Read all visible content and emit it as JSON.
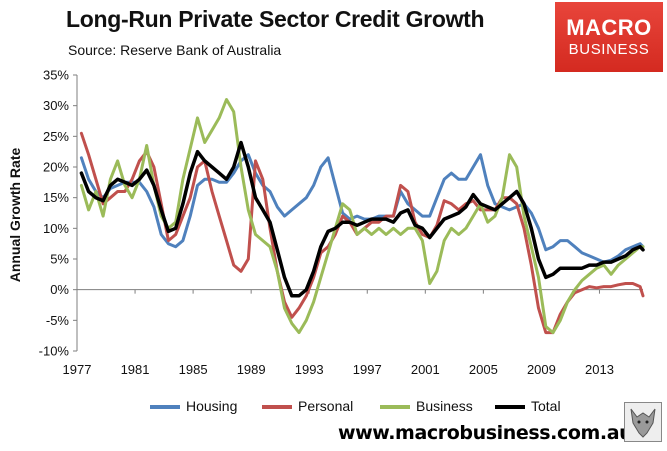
{
  "header": {
    "title": "Long-Run Private Sector Credit Growth",
    "source": "Source: Reserve Bank of Australia"
  },
  "brand": {
    "line1": "MACRO",
    "line2": "BUSINESS",
    "url": "www.macrobusiness.com.au",
    "color": "#d9322a"
  },
  "chart_data": {
    "type": "line",
    "title": "Long-Run Private Sector Credit Growth",
    "xlabel": "",
    "ylabel": "Annual Growth Rate",
    "xlim": [
      1977,
      2016
    ],
    "ylim": [
      -10,
      35
    ],
    "x_ticks": [
      "1977",
      "1981",
      "1985",
      "1989",
      "1993",
      "1997",
      "2001",
      "2005",
      "2009",
      "2013"
    ],
    "y_ticks": [
      "-10%",
      "-5%",
      "0%",
      "5%",
      "10%",
      "15%",
      "20%",
      "25%",
      "30%",
      "35%"
    ],
    "grid": false,
    "legend_position": "bottom",
    "series": [
      {
        "name": "Housing",
        "color": "#4f81bd",
        "width": 3,
        "x": [
          1977.3,
          1977.8,
          1978.3,
          1978.8,
          1979.3,
          1979.8,
          1980.3,
          1980.8,
          1981.3,
          1981.8,
          1982.3,
          1982.8,
          1983.3,
          1983.8,
          1984.3,
          1984.8,
          1985.3,
          1985.8,
          1986.3,
          1986.8,
          1987.3,
          1987.8,
          1988.3,
          1988.8,
          1989.3,
          1989.8,
          1990.3,
          1990.8,
          1991.3,
          1991.8,
          1992.3,
          1992.8,
          1993.3,
          1993.8,
          1994.3,
          1994.8,
          1995.3,
          1995.8,
          1996.3,
          1996.8,
          1997.3,
          1997.8,
          1998.3,
          1998.8,
          1999.3,
          1999.8,
          2000.3,
          2000.8,
          2001.3,
          2001.8,
          2002.3,
          2002.8,
          2003.3,
          2003.8,
          2004.3,
          2004.8,
          2005.3,
          2005.8,
          2006.3,
          2006.8,
          2007.3,
          2007.8,
          2008.3,
          2008.8,
          2009.3,
          2009.8,
          2010.3,
          2010.8,
          2011.3,
          2011.8,
          2012.3,
          2012.8,
          2013.3,
          2013.8,
          2014.3,
          2014.8,
          2015.3,
          2015.8,
          2016.0
        ],
        "values": [
          21.5,
          18,
          16,
          15,
          16.5,
          17,
          17.5,
          17.5,
          17.5,
          16,
          13.5,
          9,
          7.5,
          7,
          8,
          12,
          17,
          18,
          18,
          17.5,
          17.5,
          19,
          21,
          22,
          19,
          17,
          16,
          13.5,
          12,
          13,
          14,
          15,
          17,
          20,
          21.5,
          17,
          12.5,
          11.5,
          12,
          11.5,
          11.5,
          12,
          12,
          12,
          16,
          14,
          13,
          12,
          12,
          15,
          18,
          19,
          18,
          18,
          20,
          22,
          17,
          14,
          13.5,
          13,
          13.5,
          14,
          12.5,
          10,
          6.5,
          7,
          8,
          8,
          7,
          6,
          5.5,
          5,
          4.5,
          4.8,
          5.5,
          6.5,
          7,
          7.5,
          7
        ]
      },
      {
        "name": "Personal",
        "color": "#c0504d",
        "width": 3,
        "x": [
          1977.3,
          1977.8,
          1978.3,
          1978.8,
          1979.3,
          1979.8,
          1980.3,
          1980.8,
          1981.3,
          1981.8,
          1982.3,
          1982.8,
          1983.3,
          1983.8,
          1984.3,
          1984.8,
          1985.3,
          1985.8,
          1986.3,
          1986.8,
          1987.3,
          1987.8,
          1988.3,
          1988.8,
          1989.3,
          1989.8,
          1990.3,
          1990.8,
          1991.3,
          1991.8,
          1992.3,
          1992.8,
          1993.3,
          1993.8,
          1994.3,
          1994.8,
          1995.3,
          1995.8,
          1996.3,
          1996.8,
          1997.3,
          1997.8,
          1998.3,
          1998.8,
          1999.3,
          1999.8,
          2000.3,
          2000.8,
          2001.3,
          2001.8,
          2002.3,
          2002.8,
          2003.3,
          2003.8,
          2004.3,
          2004.8,
          2005.3,
          2005.8,
          2006.3,
          2006.8,
          2007.3,
          2007.8,
          2008.3,
          2008.8,
          2009.3,
          2009.8,
          2010.3,
          2010.8,
          2011.3,
          2011.8,
          2012.3,
          2012.8,
          2013.3,
          2013.8,
          2014.3,
          2014.8,
          2015.3,
          2015.8,
          2016.0
        ],
        "values": [
          25.5,
          22,
          18,
          14,
          15,
          16,
          16,
          18,
          21,
          22.5,
          20,
          14,
          8,
          9,
          12,
          15,
          20,
          21,
          16,
          12,
          8,
          4,
          3,
          5,
          21,
          18,
          10,
          3,
          -2,
          -4.5,
          -3,
          -1,
          2,
          6,
          7,
          9,
          12,
          11,
          9,
          10,
          11,
          11,
          12,
          12,
          17,
          16,
          11,
          9,
          8.5,
          10.5,
          14.5,
          14,
          13,
          14,
          14.5,
          13,
          13,
          13,
          15,
          15,
          14,
          10,
          4,
          -3,
          -7,
          -7,
          -4,
          -2,
          -0.5,
          0,
          0.5,
          0.3,
          0.5,
          0.5,
          0.8,
          1,
          1,
          0.5,
          -1
        ]
      },
      {
        "name": "Business",
        "color": "#9bbb59",
        "width": 3,
        "x": [
          1977.3,
          1977.8,
          1978.3,
          1978.8,
          1979.3,
          1979.8,
          1980.3,
          1980.8,
          1981.3,
          1981.8,
          1982.3,
          1982.8,
          1983.3,
          1983.8,
          1984.3,
          1984.8,
          1985.3,
          1985.8,
          1986.3,
          1986.8,
          1987.3,
          1987.8,
          1988.3,
          1988.8,
          1989.3,
          1989.8,
          1990.3,
          1990.8,
          1991.3,
          1991.8,
          1992.3,
          1992.8,
          1993.3,
          1993.8,
          1994.3,
          1994.8,
          1995.3,
          1995.8,
          1996.3,
          1996.8,
          1997.3,
          1997.8,
          1998.3,
          1998.8,
          1999.3,
          1999.8,
          2000.3,
          2000.8,
          2001.3,
          2001.8,
          2002.3,
          2002.8,
          2003.3,
          2003.8,
          2004.3,
          2004.8,
          2005.3,
          2005.8,
          2006.3,
          2006.8,
          2007.3,
          2007.8,
          2008.3,
          2008.8,
          2009.3,
          2009.8,
          2010.3,
          2010.8,
          2011.3,
          2011.8,
          2012.3,
          2012.8,
          2013.3,
          2013.8,
          2014.3,
          2014.8,
          2015.3,
          2015.8,
          2016.0
        ],
        "values": [
          17,
          13,
          16,
          12,
          18,
          21,
          17,
          15,
          18,
          23.5,
          17,
          12,
          10,
          11,
          18,
          23,
          28,
          24,
          26,
          28,
          31,
          29,
          20,
          13,
          9,
          8,
          7,
          3,
          -3,
          -5.5,
          -7,
          -5,
          -2,
          2,
          6,
          10,
          14,
          13,
          9,
          10,
          9,
          10,
          9,
          10,
          9,
          10,
          10,
          8,
          1,
          3,
          8,
          10,
          9,
          10,
          12,
          14,
          11,
          12,
          15,
          22,
          20,
          12,
          7,
          2,
          -6,
          -7,
          -5,
          -2,
          0,
          1.5,
          2.5,
          3.5,
          4,
          2.5,
          4,
          5,
          6,
          7,
          7
        ]
      },
      {
        "name": "Total",
        "color": "#000000",
        "width": 3.5,
        "x": [
          1977.3,
          1977.8,
          1978.3,
          1978.8,
          1979.3,
          1979.8,
          1980.3,
          1980.8,
          1981.3,
          1981.8,
          1982.3,
          1982.8,
          1983.3,
          1983.8,
          1984.3,
          1984.8,
          1985.3,
          1985.8,
          1986.3,
          1986.8,
          1987.3,
          1987.8,
          1988.3,
          1988.8,
          1989.3,
          1989.8,
          1990.3,
          1990.8,
          1991.3,
          1991.8,
          1992.3,
          1992.8,
          1993.3,
          1993.8,
          1994.3,
          1994.8,
          1995.3,
          1995.8,
          1996.3,
          1996.8,
          1997.3,
          1997.8,
          1998.3,
          1998.8,
          1999.3,
          1999.8,
          2000.3,
          2000.8,
          2001.3,
          2001.8,
          2002.3,
          2002.8,
          2003.3,
          2003.8,
          2004.3,
          2004.8,
          2005.3,
          2005.8,
          2006.3,
          2006.8,
          2007.3,
          2007.8,
          2008.3,
          2008.8,
          2009.3,
          2009.8,
          2010.3,
          2010.8,
          2011.3,
          2011.8,
          2012.3,
          2012.8,
          2013.3,
          2013.8,
          2014.3,
          2014.8,
          2015.3,
          2015.8,
          2016.0
        ],
        "values": [
          19,
          16,
          15,
          14.5,
          17,
          18,
          17.5,
          17,
          18,
          19.5,
          17,
          13,
          9.5,
          10,
          14,
          19,
          22.5,
          21,
          20,
          19,
          18,
          20,
          24,
          20,
          15,
          13,
          11,
          6.5,
          2,
          -1,
          -1,
          0,
          3,
          7,
          9.5,
          10,
          11,
          11,
          10.5,
          11,
          11.5,
          11.5,
          11.5,
          11,
          12.5,
          13,
          10.5,
          10,
          8.5,
          10,
          11.5,
          12,
          12.5,
          13.5,
          15.5,
          14,
          13.5,
          13,
          14,
          15,
          16,
          14,
          10,
          5,
          2,
          2.5,
          3.5,
          3.5,
          3.5,
          3.5,
          4,
          4,
          4.5,
          4.5,
          5,
          5.5,
          6.5,
          7,
          6.5
        ]
      }
    ]
  }
}
